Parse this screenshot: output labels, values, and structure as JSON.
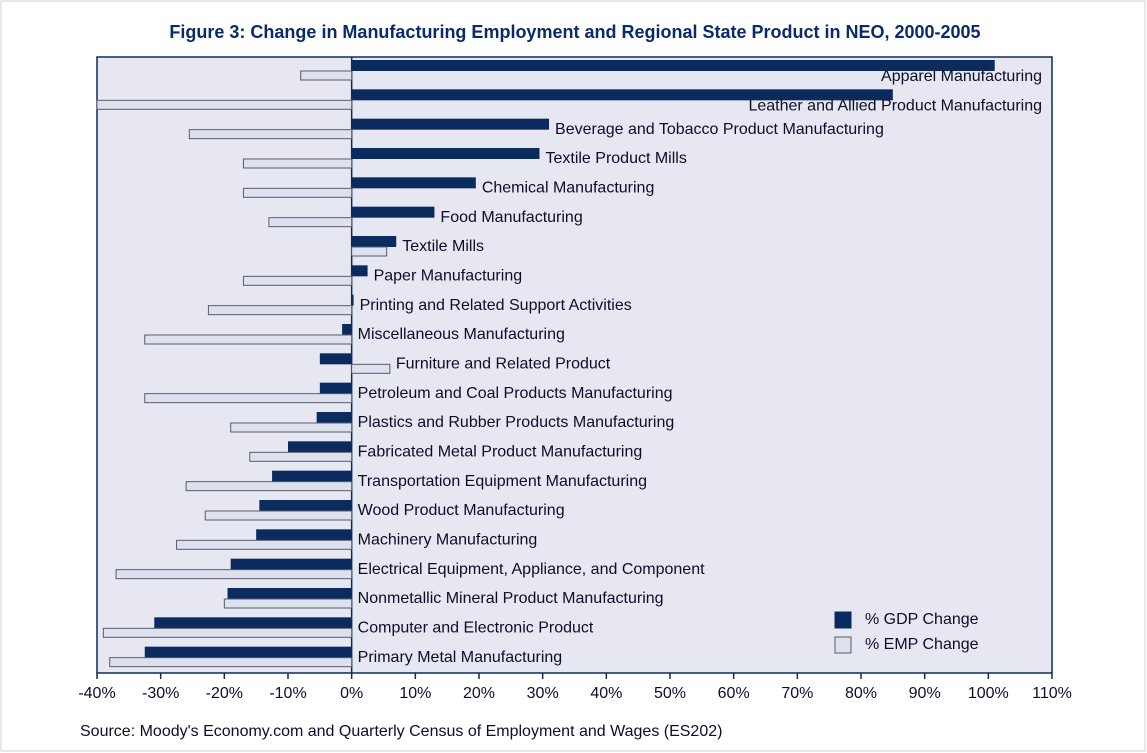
{
  "chart_data": {
    "type": "hbar",
    "title": "Figure 3:  Change in Manufacturing Employment and Regional State Product in NEO, 2000-2005",
    "source": "Source:  Moody's Economy.com and Quarterly Census of Employment and Wages (ES202)",
    "categories": [
      "Apparel Manufacturing",
      "Leather and Allied Product Manufacturing",
      "Beverage and Tobacco Product Manufacturing",
      "Textile Product Mills",
      "Chemical Manufacturing",
      "Food Manufacturing",
      "Textile Mills",
      "Paper Manufacturing",
      "Printing and Related Support Activities",
      "Miscellaneous Manufacturing",
      "Furniture and Related Product",
      "Petroleum and Coal Products Manufacturing",
      "Plastics and Rubber Products Manufacturing",
      "Fabricated Metal Product Manufacturing",
      "Transportation Equipment Manufacturing",
      "Wood Product Manufacturing",
      "Machinery Manufacturing",
      "Electrical Equipment, Appliance, and Component",
      "Nonmetallic Mineral Product Manufacturing",
      "Computer and Electronic Product",
      "Primary Metal Manufacturing"
    ],
    "series": [
      {
        "name": "% GDP Change",
        "color": "#0b2a5e",
        "values": [
          101,
          85,
          31,
          29.5,
          19.5,
          13,
          7,
          2.5,
          0.3,
          -1.5,
          -5,
          -5,
          -5.5,
          -10,
          -12.5,
          -14.5,
          -15,
          -19,
          -19.5,
          -31,
          -32.5
        ]
      },
      {
        "name": "% EMP Change",
        "color": "#dde1ee",
        "values": [
          -8,
          -40,
          -25.5,
          -17,
          -17,
          -13,
          5.5,
          -17,
          -22.5,
          -32.5,
          6,
          -32.5,
          -19,
          -16,
          -26,
          -23,
          -27.5,
          -37,
          -20,
          -39,
          -38
        ]
      }
    ],
    "xlim": [
      -40,
      110
    ],
    "xticks": [
      {
        "value": -40,
        "label": "-40%"
      },
      {
        "value": -30,
        "label": "-30%"
      },
      {
        "value": -20,
        "label": "-20%"
      },
      {
        "value": -10,
        "label": "-10%"
      },
      {
        "value": 0,
        "label": "0%"
      },
      {
        "value": 10,
        "label": "10%"
      },
      {
        "value": 20,
        "label": "20%"
      },
      {
        "value": 30,
        "label": "30%"
      },
      {
        "value": 40,
        "label": "40%"
      },
      {
        "value": 50,
        "label": "50%"
      },
      {
        "value": 60,
        "label": "60%"
      },
      {
        "value": 70,
        "label": "70%"
      },
      {
        "value": 80,
        "label": "80%"
      },
      {
        "value": 90,
        "label": "90%"
      },
      {
        "value": 100,
        "label": "100%"
      },
      {
        "value": 110,
        "label": "110%"
      }
    ],
    "legend": "lower right"
  }
}
